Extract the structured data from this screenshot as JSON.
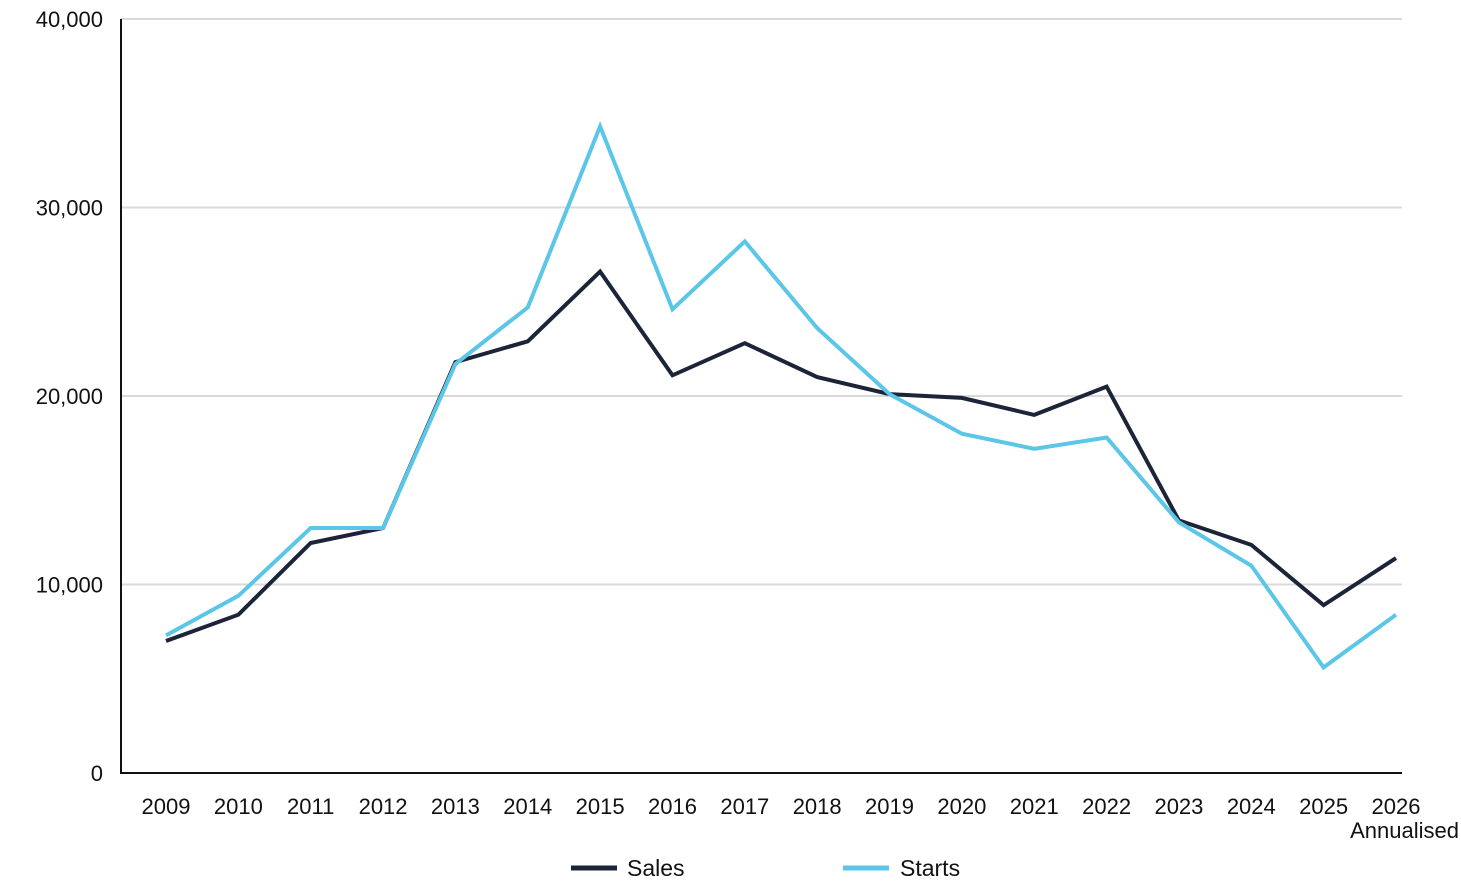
{
  "chart_data": {
    "type": "line",
    "title": "",
    "xlabel": "",
    "ylabel": "",
    "categories": [
      "2009",
      "2010",
      "2011",
      "2012",
      "2013",
      "2014",
      "2015",
      "2016",
      "2017",
      "2018",
      "2019",
      "2020",
      "2021",
      "2022",
      "2023",
      "2024",
      "2025",
      "2026"
    ],
    "category_sublabels": [
      "",
      "",
      "",
      "",
      "",
      "",
      "",
      "",
      "",
      "",
      "",
      "",
      "",
      "",
      "",
      "",
      "",
      "Annualised"
    ],
    "ylim": [
      0,
      40000
    ],
    "yticks": [
      0,
      10000,
      20000,
      30000,
      40000
    ],
    "ytick_labels": [
      "0",
      "10,000",
      "20,000",
      "30,000",
      "40,000"
    ],
    "grid": "horizontal",
    "legend_position": "bottom-center",
    "series": [
      {
        "name": "Sales",
        "color": "#1b2438",
        "values": [
          7000,
          8400,
          12200,
          13000,
          21800,
          22900,
          26600,
          21100,
          22800,
          21000,
          20100,
          19900,
          19000,
          20500,
          13400,
          12100,
          8900,
          11400
        ]
      },
      {
        "name": "Starts",
        "color": "#5bc6e8",
        "values": [
          7300,
          9400,
          13000,
          13000,
          21700,
          24700,
          34300,
          24600,
          28200,
          23600,
          20100,
          18000,
          17200,
          17800,
          13300,
          11000,
          5600,
          8400
        ]
      }
    ],
    "colors": {
      "axis": "#111111",
      "grid": "#d9d9d9"
    }
  }
}
